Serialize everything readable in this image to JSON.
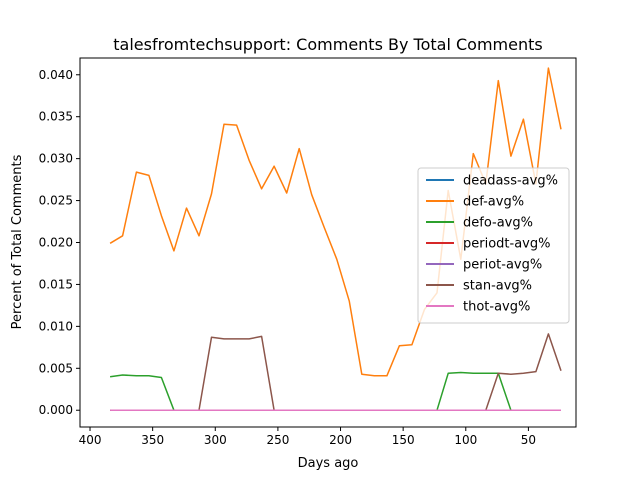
{
  "chart_data": {
    "type": "line",
    "title": "talesfromtechsupport: Comments By Total Comments",
    "xlabel": "Days ago",
    "ylabel": "Percent of Total Comments",
    "xlim": [
      408,
      12
    ],
    "ylim": [
      -0.002,
      0.042
    ],
    "x_inverted": true,
    "x_ticks": [
      400,
      350,
      300,
      250,
      200,
      150,
      100,
      50
    ],
    "x_tick_labels": [
      "400",
      "350",
      "300",
      "250",
      "200",
      "150",
      "100",
      "50"
    ],
    "y_ticks": [
      0.0,
      0.005,
      0.01,
      0.015,
      0.02,
      0.025,
      0.03,
      0.035,
      0.04
    ],
    "y_tick_labels": [
      "0.000",
      "0.005",
      "0.010",
      "0.015",
      "0.020",
      "0.025",
      "0.030",
      "0.035",
      "0.040"
    ],
    "grid": false,
    "legend_position": "center-right",
    "x": [
      384,
      374,
      363,
      353,
      343,
      333,
      323,
      313,
      303,
      293,
      283,
      273,
      263,
      253,
      243,
      233,
      223,
      213,
      203,
      193,
      183,
      173,
      163,
      153,
      143,
      133,
      123,
      114,
      104,
      94,
      84,
      74,
      64,
      54,
      44,
      34,
      24
    ],
    "series": [
      {
        "name": "deadass-avg%",
        "color": "#1f77b4",
        "values": [
          0,
          0,
          0,
          0,
          0,
          0,
          0,
          0,
          0,
          0,
          0,
          0,
          0,
          0,
          0,
          0,
          0,
          0,
          0,
          0,
          0,
          0,
          0,
          0,
          0,
          0,
          0,
          0,
          0,
          0,
          0,
          0,
          0,
          0,
          0,
          0,
          0
        ]
      },
      {
        "name": "def-avg%",
        "color": "#ff7f0e",
        "values": [
          0.0199,
          0.0208,
          0.0284,
          0.028,
          0.0232,
          0.019,
          0.0241,
          0.0208,
          0.0258,
          0.0341,
          0.034,
          0.0298,
          0.0264,
          0.0291,
          0.0259,
          0.0312,
          0.0257,
          0.0218,
          0.018,
          0.013,
          0.0043,
          0.0041,
          0.0041,
          0.0077,
          0.0078,
          0.012,
          0.014,
          0.0262,
          0.018,
          0.0306,
          0.027,
          0.0393,
          0.0303,
          0.0347,
          0.027,
          0.0408,
          0.0335
        ]
      },
      {
        "name": "defo-avg%",
        "color": "#2ca02c",
        "values": [
          0.004,
          0.0042,
          0.0041,
          0.0041,
          0.0039,
          0,
          0,
          0,
          0,
          0,
          0,
          0,
          0,
          0,
          0,
          0,
          0,
          0,
          0,
          0,
          0,
          0,
          0,
          0,
          0,
          0,
          0,
          0.0044,
          0.0045,
          0.0044,
          0.0044,
          0.0044,
          0,
          0,
          0,
          0,
          0
        ]
      },
      {
        "name": "periodt-avg%",
        "color": "#d62728",
        "values": [
          0,
          0,
          0,
          0,
          0,
          0,
          0,
          0,
          0,
          0,
          0,
          0,
          0,
          0,
          0,
          0,
          0,
          0,
          0,
          0,
          0,
          0,
          0,
          0,
          0,
          0,
          0,
          0,
          0,
          0,
          0,
          0,
          0,
          0,
          0,
          0,
          0
        ]
      },
      {
        "name": "periot-avg%",
        "color": "#9467bd",
        "values": [
          0,
          0,
          0,
          0,
          0,
          0,
          0,
          0,
          0,
          0,
          0,
          0,
          0,
          0,
          0,
          0,
          0,
          0,
          0,
          0,
          0,
          0,
          0,
          0,
          0,
          0,
          0,
          0,
          0,
          0,
          0,
          0,
          0,
          0,
          0,
          0,
          0
        ]
      },
      {
        "name": "stan-avg%",
        "color": "#8c564b",
        "values": [
          0,
          0,
          0,
          0,
          0,
          0,
          0,
          0,
          0.0087,
          0.0085,
          0.0085,
          0.0085,
          0.0088,
          0,
          0,
          0,
          0,
          0,
          0,
          0,
          0,
          0,
          0,
          0,
          0,
          0,
          0,
          0,
          0,
          0,
          0,
          0.0044,
          0.0043,
          0.0044,
          0.0046,
          0.0091,
          0.0047
        ]
      },
      {
        "name": "thot-avg%",
        "color": "#e377c2",
        "values": [
          0,
          0,
          0,
          0,
          0,
          0,
          0,
          0,
          0,
          0,
          0,
          0,
          0,
          0,
          0,
          0,
          0,
          0,
          0,
          0,
          0,
          0,
          0,
          0,
          0,
          0,
          0,
          0,
          0,
          0,
          0,
          0,
          0,
          0,
          0,
          0,
          0
        ]
      }
    ]
  }
}
